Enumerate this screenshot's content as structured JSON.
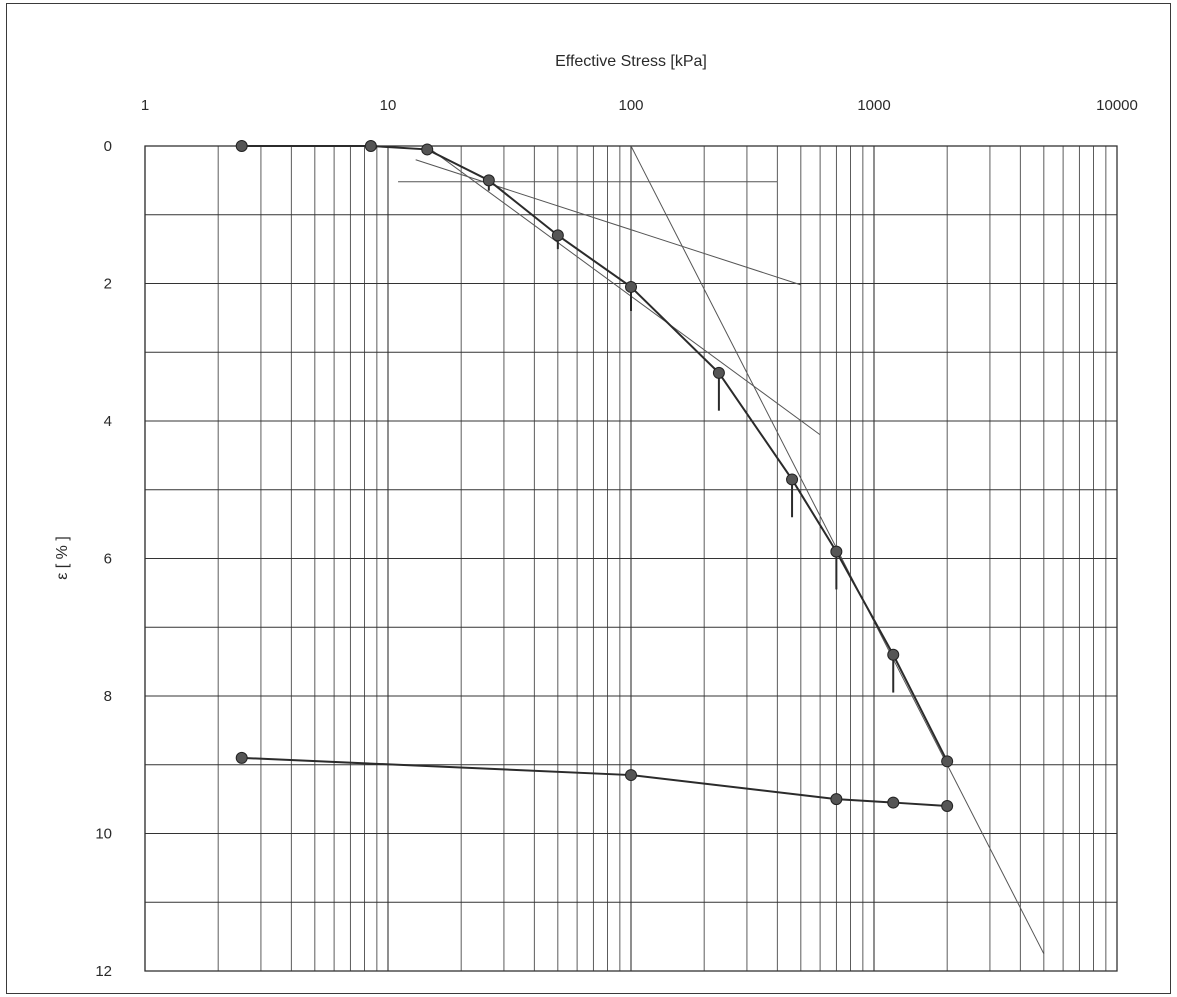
{
  "chart_data": {
    "type": "line",
    "title": "",
    "xlabel": "Effective Stress [kPa]",
    "ylabel": "ε [ % ]",
    "x_scale": "log",
    "xlim": [
      1,
      10000
    ],
    "ylim": [
      12,
      0
    ],
    "x_tick_labels": [
      "1",
      "10",
      "100",
      "1000",
      "10000"
    ],
    "x_tick_values": [
      1,
      10,
      100,
      1000,
      10000
    ],
    "y_tick_labels": [
      "0",
      "2",
      "4",
      "6",
      "8",
      "10",
      "12"
    ],
    "y_tick_values": [
      0,
      2,
      4,
      6,
      8,
      10,
      12
    ],
    "grid": true,
    "legend": "none",
    "series": [
      {
        "values": [
          {
            "x": 2.5,
            "y": 0.0
          },
          {
            "x": 8.5,
            "y": 0.0
          },
          {
            "x": 14.5,
            "y": 0.05
          },
          {
            "x": 26,
            "y": 0.5
          },
          {
            "x": 50,
            "y": 1.3
          },
          {
            "x": 100,
            "y": 2.05
          },
          {
            "x": 230,
            "y": 3.3
          },
          {
            "x": 460,
            "y": 4.85
          },
          {
            "x": 700,
            "y": 5.9
          },
          {
            "x": 1200,
            "y": 7.4
          },
          {
            "x": 2000,
            "y": 8.95
          }
        ]
      },
      {
        "values": [
          {
            "x": 2000,
            "y": 9.6
          },
          {
            "x": 1200,
            "y": 9.55
          },
          {
            "x": 700,
            "y": 9.5
          },
          {
            "x": 100,
            "y": 9.15
          },
          {
            "x": 2.5,
            "y": 8.9
          }
        ]
      }
    ],
    "construction_lines": [
      {
        "x1": 11,
        "y1": 0.52,
        "x2": 400,
        "y2": 0.52
      },
      {
        "x1": 13,
        "y1": 0.2,
        "x2": 500,
        "y2": 2.02
      },
      {
        "x1": 15,
        "y1": 0.05,
        "x2": 600,
        "y2": 4.2
      },
      {
        "x1": 100,
        "y1": 0.0,
        "x2": 5000,
        "y2": 11.75
      }
    ],
    "settlement_ticks": [
      {
        "x": 26,
        "y1": 0.5,
        "y2": 0.65
      },
      {
        "x": 50,
        "y1": 1.3,
        "y2": 1.5
      },
      {
        "x": 100,
        "y1": 2.05,
        "y2": 2.4
      },
      {
        "x": 230,
        "y1": 3.3,
        "y2": 3.85
      },
      {
        "x": 460,
        "y1": 4.85,
        "y2": 5.4
      },
      {
        "x": 700,
        "y1": 5.9,
        "y2": 6.45
      },
      {
        "x": 1200,
        "y1": 7.4,
        "y2": 7.95
      }
    ],
    "colors": {
      "line": "#2b2b2b",
      "marker": "#555555",
      "grid": "#333333",
      "construction": "#555555"
    }
  }
}
